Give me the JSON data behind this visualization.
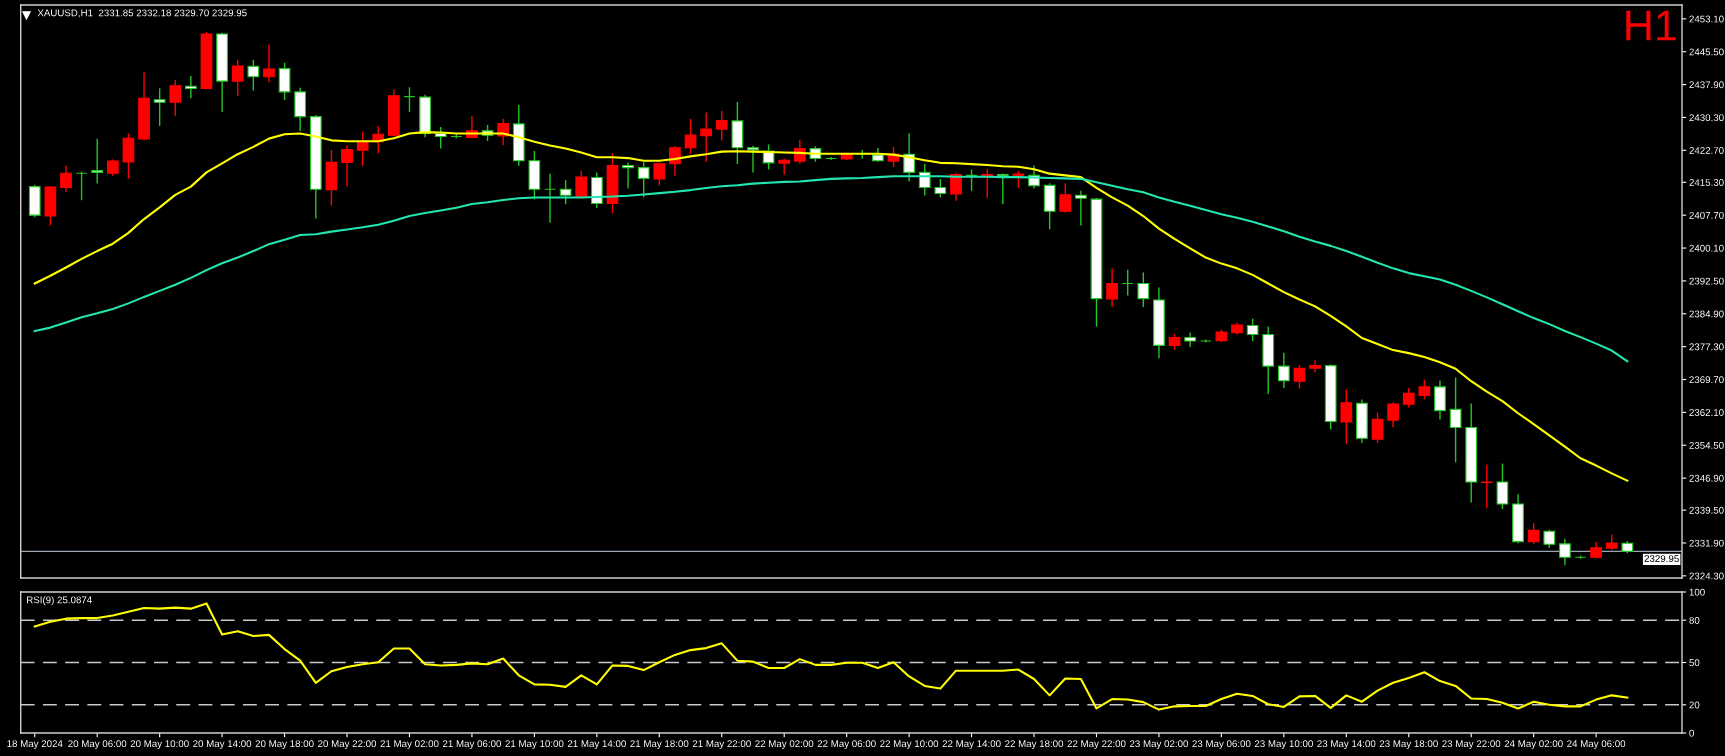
{
  "chart_data": [
    {
      "type": "candlestick",
      "title": "XAUUSD,H1  2331.85 2332.18 2329.70 2329.95",
      "annotations": [
        "H1"
      ],
      "categories": [
        null,
        null,
        null,
        null,
        null,
        null,
        null,
        null,
        null,
        null,
        null,
        null,
        null,
        null,
        null,
        null,
        null,
        null,
        null,
        null,
        null,
        null,
        null,
        null,
        null,
        null,
        null,
        null,
        null,
        null,
        null,
        null,
        null,
        null,
        null,
        null,
        null,
        null,
        null,
        null,
        null,
        null,
        null,
        null,
        null,
        null,
        null,
        null,
        null,
        null,
        null,
        null,
        null,
        null,
        null,
        null,
        null,
        null,
        null,
        null,
        null,
        null,
        null,
        null,
        null,
        null,
        null,
        null,
        null,
        null,
        null,
        null,
        null,
        null,
        null,
        null,
        null,
        null,
        null,
        null,
        null,
        null,
        null,
        null,
        null,
        null,
        null,
        null,
        null,
        null,
        null,
        null,
        null,
        null,
        null,
        null,
        null,
        null,
        null,
        null,
        null,
        null,
        null
      ],
      "ohlc": [
        [
          2414.3,
          2414.6,
          2407.4,
          2407.7
        ],
        [
          2407.5,
          2414.3,
          2405.5,
          2414.2
        ],
        [
          2414.1,
          2419.0,
          2413.2,
          2417.4
        ],
        [
          2417.4,
          2417.6,
          2411.3,
          2417.4
        ],
        [
          2418.0,
          2425.2,
          2415.2,
          2417.6
        ],
        [
          2417.4,
          2420.4,
          2417.0,
          2420.2
        ],
        [
          2420.0,
          2426.4,
          2416.3,
          2425.5
        ],
        [
          2425.3,
          2440.6,
          2425.2,
          2434.7
        ],
        [
          2434.4,
          2436.9,
          2428.5,
          2433.8
        ],
        [
          2433.8,
          2438.8,
          2430.8,
          2437.6
        ],
        [
          2437.5,
          2439.7,
          2434.9,
          2437.0
        ],
        [
          2437.0,
          2449.9,
          2436.9,
          2449.6
        ],
        [
          2449.6,
          2449.7,
          2431.7,
          2438.7
        ],
        [
          2438.7,
          2443.5,
          2435.4,
          2442.2
        ],
        [
          2442.1,
          2443.5,
          2436.7,
          2439.7
        ],
        [
          2439.7,
          2447.0,
          2438.6,
          2441.5
        ],
        [
          2441.6,
          2442.8,
          2434.5,
          2436.2
        ],
        [
          2436.2,
          2437.0,
          2427.3,
          2430.5
        ],
        [
          2430.5,
          2430.7,
          2407.1,
          2413.7
        ],
        [
          2413.6,
          2422.6,
          2410.1,
          2419.9
        ],
        [
          2419.9,
          2423.7,
          2414.5,
          2422.9
        ],
        [
          2422.7,
          2426.9,
          2419.3,
          2424.8
        ],
        [
          2424.7,
          2428.1,
          2422.2,
          2426.4
        ],
        [
          2426.2,
          2436.6,
          2426.1,
          2435.3
        ],
        [
          2435.1,
          2437.1,
          2431.7,
          2435.1
        ],
        [
          2435.0,
          2435.4,
          2425.9,
          2426.6
        ],
        [
          2426.6,
          2427.9,
          2423.3,
          2425.9
        ],
        [
          2425.9,
          2426.2,
          2425.6,
          2425.9
        ],
        [
          2425.7,
          2430.5,
          2425.6,
          2427.2
        ],
        [
          2427.2,
          2428.4,
          2425.0,
          2426.2
        ],
        [
          2426.0,
          2429.8,
          2424.1,
          2428.9
        ],
        [
          2428.8,
          2433.0,
          2419.3,
          2420.3
        ],
        [
          2420.3,
          2422.4,
          2411.5,
          2413.7
        ],
        [
          2413.7,
          2417.1,
          2406.1,
          2413.7
        ],
        [
          2413.7,
          2415.7,
          2410.4,
          2412.3
        ],
        [
          2412.1,
          2417.8,
          2412.0,
          2416.5
        ],
        [
          2416.4,
          2417.4,
          2409.5,
          2410.4
        ],
        [
          2410.4,
          2421.9,
          2408.3,
          2419.2
        ],
        [
          2419.2,
          2419.7,
          2414.0,
          2418.7
        ],
        [
          2418.7,
          2419.8,
          2412.0,
          2416.2
        ],
        [
          2416.1,
          2419.7,
          2414.7,
          2419.6
        ],
        [
          2419.6,
          2423.5,
          2417.0,
          2423.3
        ],
        [
          2423.3,
          2429.8,
          2422.0,
          2426.2
        ],
        [
          2426.1,
          2431.3,
          2420.2,
          2427.6
        ],
        [
          2427.6,
          2431.6,
          2425.1,
          2429.6
        ],
        [
          2429.5,
          2433.7,
          2419.7,
          2423.3
        ],
        [
          2423.3,
          2423.6,
          2417.7,
          2422.8
        ],
        [
          2422.5,
          2423.9,
          2418.4,
          2419.8
        ],
        [
          2419.7,
          2420.6,
          2417.2,
          2420.4
        ],
        [
          2420.2,
          2425.0,
          2419.7,
          2423.1
        ],
        [
          2423.1,
          2423.5,
          2420.2,
          2420.8
        ],
        [
          2420.8,
          2421.0,
          2420.6,
          2420.8
        ],
        [
          2420.7,
          2422.0,
          2420.6,
          2421.9
        ],
        [
          2421.9,
          2422.6,
          2420.9,
          2421.9
        ],
        [
          2421.6,
          2423.1,
          2420.2,
          2420.3
        ],
        [
          2420.2,
          2423.3,
          2419.0,
          2421.8
        ],
        [
          2421.8,
          2426.4,
          2415.7,
          2417.6
        ],
        [
          2417.6,
          2419.4,
          2412.4,
          2414.1
        ],
        [
          2414.1,
          2415.9,
          2412.0,
          2412.7
        ],
        [
          2412.6,
          2417.4,
          2411.2,
          2417.1
        ],
        [
          2416.9,
          2418.1,
          2413.5,
          2416.9
        ],
        [
          2416.8,
          2418.3,
          2411.9,
          2417.1
        ],
        [
          2417.1,
          2417.2,
          2410.4,
          2416.8
        ],
        [
          2416.8,
          2417.7,
          2414.2,
          2417.2
        ],
        [
          2416.9,
          2419.0,
          2414.0,
          2414.5
        ],
        [
          2414.6,
          2414.9,
          2404.6,
          2408.6
        ],
        [
          2408.6,
          2414.9,
          2408.5,
          2412.4
        ],
        [
          2412.3,
          2413.2,
          2405.5,
          2411.6
        ],
        [
          2411.4,
          2411.5,
          2382.1,
          2388.4
        ],
        [
          2388.3,
          2395.2,
          2386.6,
          2391.9
        ],
        [
          2391.9,
          2394.9,
          2389.3,
          2391.9
        ],
        [
          2391.9,
          2394.3,
          2386.6,
          2388.4
        ],
        [
          2388.1,
          2390.8,
          2374.8,
          2377.6
        ],
        [
          2377.6,
          2380.1,
          2376.7,
          2379.4
        ],
        [
          2379.4,
          2380.4,
          2377.4,
          2378.6
        ],
        [
          2378.6,
          2378.8,
          2378.4,
          2378.6
        ],
        [
          2378.7,
          2381.1,
          2378.5,
          2380.7
        ],
        [
          2380.5,
          2382.7,
          2380.2,
          2382.3
        ],
        [
          2382.2,
          2383.6,
          2378.7,
          2380.1
        ],
        [
          2380.1,
          2381.8,
          2366.5,
          2372.8
        ],
        [
          2372.8,
          2375.7,
          2367.9,
          2369.4
        ],
        [
          2369.3,
          2372.9,
          2367.8,
          2372.3
        ],
        [
          2372.3,
          2374.1,
          2371.5,
          2372.9
        ],
        [
          2372.9,
          2373.0,
          2358.3,
          2360.0
        ],
        [
          2359.9,
          2367.2,
          2355.0,
          2364.3
        ],
        [
          2364.2,
          2364.9,
          2355.2,
          2356.1
        ],
        [
          2355.9,
          2361.9,
          2355.2,
          2360.5
        ],
        [
          2360.3,
          2364.3,
          2358.8,
          2364.0
        ],
        [
          2364.0,
          2367.6,
          2363.4,
          2366.5
        ],
        [
          2366.0,
          2369.5,
          2365.3,
          2368.0
        ],
        [
          2368.0,
          2369.3,
          2360.6,
          2362.5
        ],
        [
          2362.8,
          2370.0,
          2350.7,
          2358.6
        ],
        [
          2358.6,
          2364.0,
          2341.4,
          2346.0
        ],
        [
          2345.9,
          2349.9,
          2340.1,
          2346.0
        ],
        [
          2346.0,
          2350.1,
          2339.9,
          2340.9
        ],
        [
          2340.9,
          2343.0,
          2332.0,
          2332.2
        ],
        [
          2332.2,
          2336.3,
          2331.8,
          2334.8
        ],
        [
          2334.6,
          2334.8,
          2330.9,
          2331.6
        ],
        [
          2331.7,
          2332.7,
          2326.9,
          2328.6
        ],
        [
          2328.6,
          2328.8,
          2328.4,
          2328.6
        ],
        [
          2328.6,
          2332.0,
          2328.5,
          2330.8
        ],
        [
          2330.7,
          2333.7,
          2330.4,
          2331.9
        ],
        [
          2331.85,
          2332.18,
          2329.7,
          2329.95
        ]
      ],
      "series": [
        {
          "type": "line",
          "color": "#ffff00",
          "values": [
            2391.9,
            2393.7,
            2395.6,
            2397.6,
            2399.4,
            2401.1,
            2403.6,
            2406.8,
            2409.5,
            2412.4,
            2414.3,
            2417.6,
            2419.7,
            2421.8,
            2423.5,
            2425.4,
            2426.4,
            2426.6,
            2425.9,
            2425.0,
            2424.8,
            2424.8,
            2424.8,
            2425.5,
            2426.6,
            2426.9,
            2426.8,
            2426.6,
            2426.6,
            2426.6,
            2426.6,
            2425.7,
            2424.7,
            2423.8,
            2423.1,
            2422.2,
            2421.1,
            2421.1,
            2420.9,
            2420.3,
            2420.3,
            2420.7,
            2421.3,
            2421.8,
            2422.4,
            2422.5,
            2422.4,
            2422.3,
            2422.2,
            2422.1,
            2421.9,
            2421.9,
            2421.9,
            2421.9,
            2421.9,
            2421.7,
            2421.1,
            2420.4,
            2419.8,
            2419.7,
            2419.5,
            2419.3,
            2419.0,
            2418.9,
            2418.3,
            2417.3,
            2416.9,
            2416.5,
            2414.0,
            2411.8,
            2409.9,
            2407.5,
            2404.6,
            2402.2,
            2400.0,
            2397.9,
            2396.5,
            2395.4,
            2393.9,
            2391.9,
            2389.9,
            2388.2,
            2386.6,
            2384.4,
            2382.0,
            2379.3,
            2377.9,
            2376.5,
            2375.8,
            2374.9,
            2373.7,
            2372.2,
            2369.3,
            2366.9,
            2364.7,
            2361.9,
            2359.4,
            2356.8,
            2354.2,
            2351.5,
            2349.8,
            2348.0,
            2346.3
          ]
        },
        {
          "type": "line",
          "color": "#22e6b0",
          "values": [
            2380.9,
            2381.7,
            2382.9,
            2384.1,
            2385.0,
            2386.0,
            2387.3,
            2388.8,
            2390.2,
            2391.6,
            2393.2,
            2395.0,
            2396.6,
            2397.9,
            2399.4,
            2401.0,
            2402.0,
            2403.1,
            2403.3,
            2403.9,
            2404.4,
            2404.9,
            2405.5,
            2406.4,
            2407.5,
            2408.2,
            2408.8,
            2409.4,
            2410.3,
            2410.7,
            2411.2,
            2411.6,
            2411.8,
            2411.8,
            2411.8,
            2411.8,
            2411.9,
            2412.0,
            2412.2,
            2412.5,
            2412.8,
            2413.1,
            2413.5,
            2414.0,
            2414.4,
            2414.6,
            2415.0,
            2415.2,
            2415.4,
            2415.5,
            2415.8,
            2416.1,
            2416.2,
            2416.3,
            2416.5,
            2416.7,
            2416.7,
            2416.7,
            2416.7,
            2416.6,
            2416.6,
            2416.6,
            2416.5,
            2416.5,
            2416.4,
            2416.3,
            2416.2,
            2416.1,
            2415.3,
            2414.5,
            2413.7,
            2413.0,
            2411.8,
            2410.8,
            2409.9,
            2408.9,
            2407.9,
            2407.1,
            2406.2,
            2405.1,
            2404.0,
            2402.7,
            2401.6,
            2400.6,
            2399.4,
            2398.1,
            2396.7,
            2395.4,
            2394.3,
            2393.6,
            2392.8,
            2391.6,
            2390.2,
            2388.7,
            2387.1,
            2385.5,
            2383.9,
            2382.5,
            2380.9,
            2379.5,
            2378.0,
            2376.4,
            2373.9
          ]
        }
      ],
      "ylim": [
        2323.8,
        2456.3
      ],
      "yticks": [
        {
          "value": 2453.1,
          "label": "2453.10"
        },
        {
          "value": 2445.5,
          "label": "2445.50"
        },
        {
          "value": 2437.9,
          "label": "2437.90"
        },
        {
          "value": 2430.3,
          "label": "2430.30"
        },
        {
          "value": 2422.7,
          "label": "2422.70"
        },
        {
          "value": 2415.3,
          "label": "2415.30"
        },
        {
          "value": 2407.7,
          "label": "2407.70"
        },
        {
          "value": 2400.1,
          "label": "2400.10"
        },
        {
          "value": 2392.5,
          "label": "2392.50"
        },
        {
          "value": 2384.9,
          "label": "2384.90"
        },
        {
          "value": 2377.3,
          "label": "2377.30"
        },
        {
          "value": 2369.7,
          "label": "2369.70"
        },
        {
          "value": 2362.1,
          "label": "2362.10"
        },
        {
          "value": 2354.5,
          "label": "2354.50"
        },
        {
          "value": 2346.9,
          "label": "2346.90"
        },
        {
          "value": 2339.5,
          "label": "2339.50"
        },
        {
          "value": 2331.9,
          "label": "2331.90"
        },
        {
          "value": 2324.3,
          "label": "2324.30"
        }
      ],
      "ref_lines": [
        {
          "axis": "y",
          "value": 2329.95,
          "label": "2329.95",
          "color": "#9aa5b1",
          "line_style": "solid"
        }
      ],
      "tick_labels": "y"
    },
    {
      "type": "line",
      "title": "RSI(9) 25.0874",
      "categories": [
        "18 May 2024",
        null,
        null,
        null,
        "20 May 06:00",
        null,
        null,
        null,
        "20 May 10:00",
        null,
        null,
        null,
        "20 May 14:00",
        null,
        null,
        null,
        "20 May 18:00",
        null,
        null,
        null,
        "20 May 22:00",
        null,
        null,
        null,
        "21 May 02:00",
        null,
        null,
        null,
        "21 May 06:00",
        null,
        null,
        null,
        "21 May 10:00",
        null,
        null,
        null,
        "21 May 14:00",
        null,
        null,
        null,
        "21 May 18:00",
        null,
        null,
        null,
        "21 May 22:00",
        null,
        null,
        null,
        "22 May 02:00",
        null,
        null,
        null,
        "22 May 06:00",
        null,
        null,
        null,
        "22 May 10:00",
        null,
        null,
        null,
        "22 May 14:00",
        null,
        null,
        null,
        "22 May 18:00",
        null,
        null,
        null,
        "22 May 22:00",
        null,
        null,
        null,
        "23 May 02:00",
        null,
        null,
        null,
        "23 May 06:00",
        null,
        null,
        null,
        "23 May 10:00",
        null,
        null,
        null,
        "23 May 14:00",
        null,
        null,
        null,
        "23 May 18:00",
        null,
        null,
        null,
        "23 May 22:00",
        null,
        null,
        null,
        "24 May 02:00",
        null,
        null,
        null,
        "24 May 06:00",
        null,
        null
      ],
      "series": [
        {
          "color": "#ffff00",
          "values": [
            75.5,
            78.9,
            81.1,
            81.5,
            81.5,
            83.4,
            86.0,
            88.6,
            88.2,
            88.9,
            88.2,
            91.9,
            69.9,
            72.2,
            68.8,
            69.6,
            59.5,
            51.3,
            35.6,
            43.8,
            46.8,
            48.7,
            50.2,
            59.9,
            59.9,
            48.7,
            47.9,
            48.3,
            49.4,
            48.7,
            52.8,
            40.9,
            34.5,
            34.2,
            32.7,
            40.9,
            34.5,
            47.9,
            47.6,
            44.6,
            50.2,
            55.4,
            58.8,
            60.2,
            63.6,
            51.3,
            50.6,
            46.1,
            46.1,
            52.4,
            48.3,
            48.3,
            49.8,
            49.8,
            46.1,
            50.2,
            40.1,
            33.4,
            31.5,
            44.2,
            44.2,
            44.2,
            44.2,
            45.0,
            38.3,
            26.7,
            38.6,
            38.3,
            17.4,
            24.1,
            23.7,
            21.9,
            16.6,
            18.9,
            19.2,
            19.2,
            24.1,
            27.8,
            26.3,
            20.4,
            18.5,
            26.0,
            26.3,
            17.8,
            26.7,
            22.2,
            30.1,
            35.6,
            39.0,
            43.1,
            36.8,
            33.4,
            24.5,
            24.1,
            21.5,
            17.4,
            22.2,
            20.0,
            18.9,
            18.9,
            23.7,
            26.7,
            25.1
          ]
        }
      ],
      "ylim": [
        0,
        100
      ],
      "yticks": [
        0,
        20,
        50,
        80,
        100
      ],
      "ref_lines": [
        {
          "axis": "y",
          "value": 80,
          "color": "#c8c8c8",
          "line_style": "dashed"
        },
        {
          "axis": "y",
          "value": 50,
          "color": "#c8c8c8",
          "line_style": "dashed"
        },
        {
          "axis": "y",
          "value": 20,
          "color": "#c8c8c8",
          "line_style": "dashed"
        }
      ]
    }
  ]
}
